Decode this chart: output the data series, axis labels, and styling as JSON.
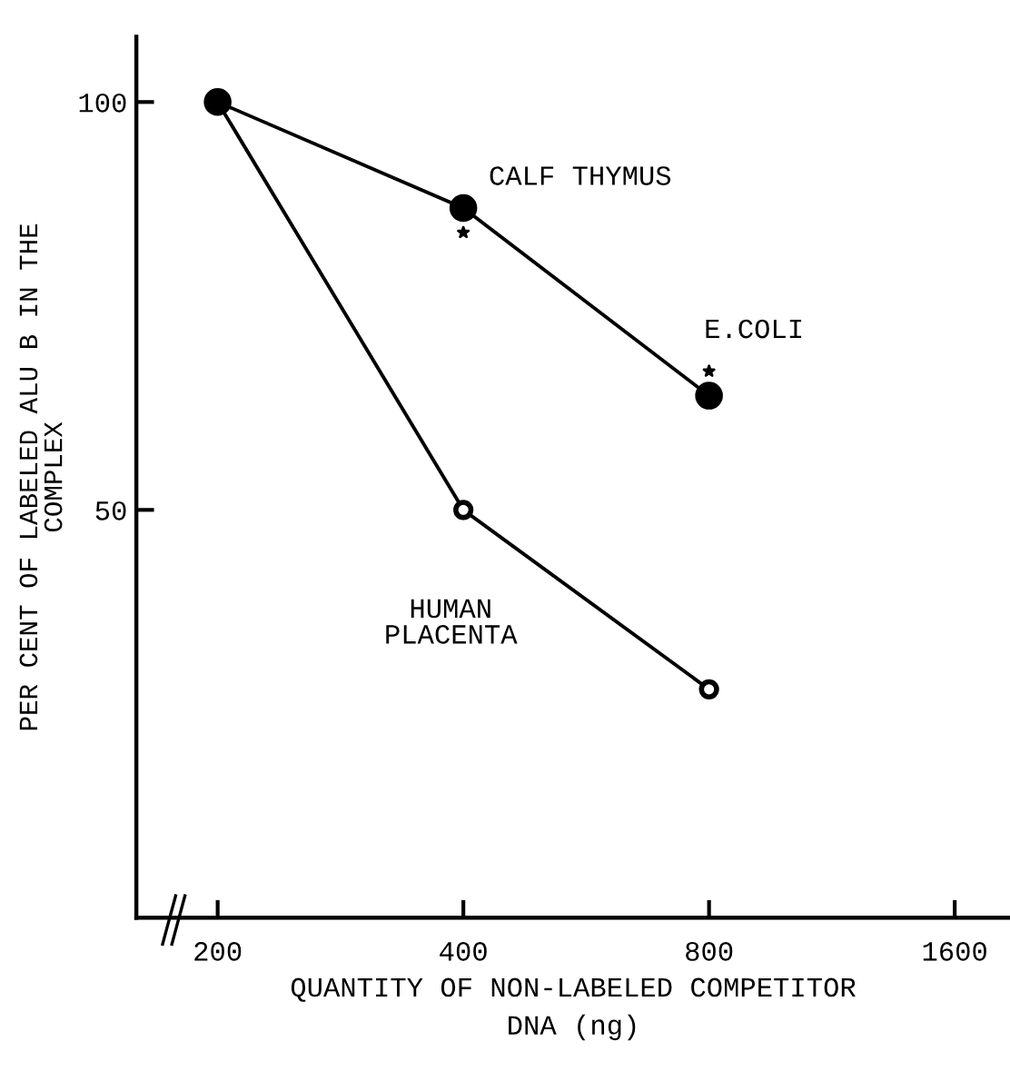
{
  "chart_data": {
    "type": "line",
    "xlabel": "QUANTITY OF NON-LABELED COMPETITOR\nDNA (ng)",
    "ylabel": "PER CENT OF LABELED ALU B IN THE\nCOMPLEX",
    "log": "x",
    "xlim": [
      159,
      1870
    ],
    "xticks": [
      200,
      400,
      800,
      1600
    ],
    "ylim": [
      0,
      108
    ],
    "yticks": [
      50,
      100
    ],
    "grid": false,
    "legend": false,
    "series": [
      {
        "name": "CALF THYMUS",
        "color": "#000000",
        "x": [
          200,
          400,
          800
        ],
        "values": [
          100,
          87,
          64
        ],
        "marker": "circle"
      },
      {
        "name": "E.COLI",
        "color": "#000000",
        "type": "scatter",
        "x": [
          400,
          800
        ],
        "values": [
          84,
          67
        ],
        "marker": "star"
      },
      {
        "name": "HUMAN PLACENTA",
        "color": "#000000",
        "x": [
          200,
          400,
          800
        ],
        "values": [
          100,
          50,
          28
        ],
        "marker": "circle"
      }
    ]
  }
}
